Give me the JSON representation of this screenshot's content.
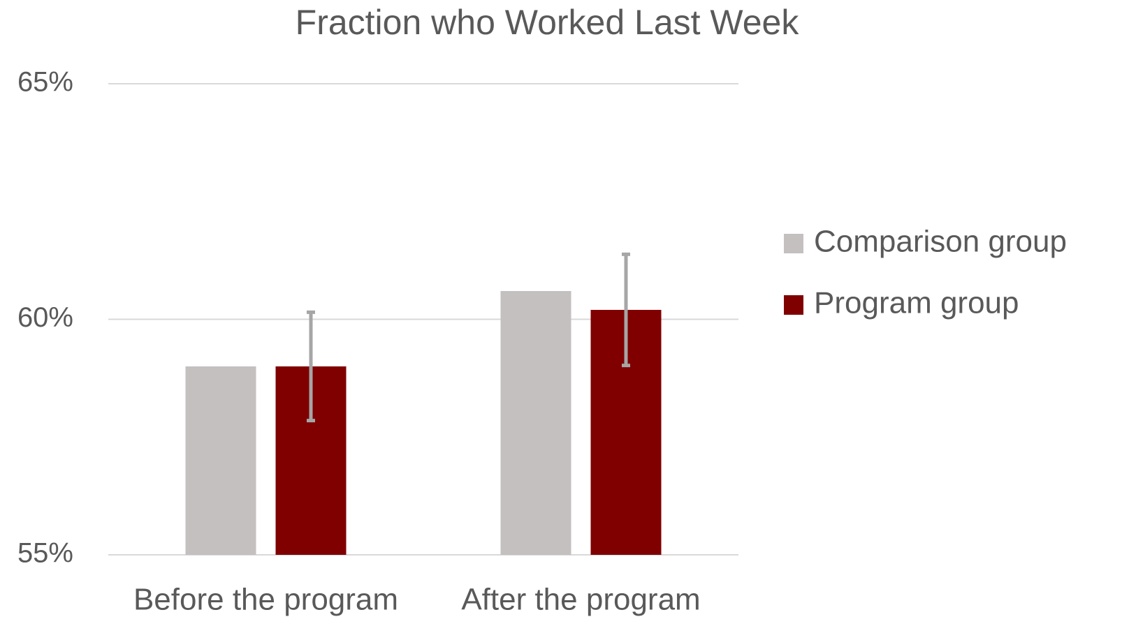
{
  "chart_data": {
    "type": "bar",
    "title": "Fraction who Worked Last Week",
    "categories": [
      "Before the program",
      "After the program"
    ],
    "series": [
      {
        "name": "Comparison group",
        "color": "#c4c0c0",
        "values": [
          59.0,
          60.6
        ]
      },
      {
        "name": "Program group",
        "color": "#800000",
        "values": [
          59.0,
          60.2
        ],
        "errors": [
          1.15,
          1.18
        ],
        "error_color": "#a6a6a6"
      }
    ],
    "ylim": [
      55,
      65
    ],
    "yticks": [
      {
        "value": 55,
        "label": "55%"
      },
      {
        "value": 60,
        "label": "60%"
      },
      {
        "value": 65,
        "label": "65%"
      }
    ],
    "grid": true,
    "legend": "right"
  }
}
